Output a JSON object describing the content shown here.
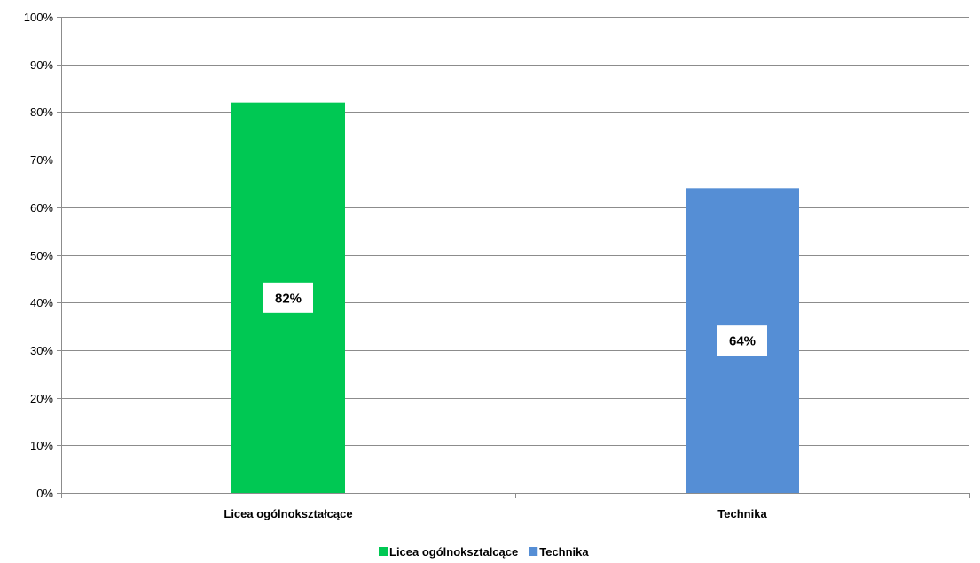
{
  "chart_data": {
    "type": "bar",
    "title": "",
    "xlabel": "",
    "ylabel": "",
    "categories": [
      "Licea ogólnokształcące",
      "Technika"
    ],
    "values": [
      82,
      64
    ],
    "value_unit": "%",
    "data_labels": [
      "82%",
      "64%"
    ],
    "bar_colors": [
      "#00c853",
      "#558ed5"
    ],
    "ylim": [
      0,
      100
    ],
    "yticks": [
      0,
      10,
      20,
      30,
      40,
      50,
      60,
      70,
      80,
      90,
      100
    ],
    "ytick_labels": [
      "0%",
      "10%",
      "20%",
      "30%",
      "40%",
      "50%",
      "60%",
      "70%",
      "80%",
      "90%",
      "100%"
    ],
    "grid": true,
    "legend": {
      "placement": "bottom",
      "entries": [
        {
          "label": "Licea ogólnokształcące",
          "color": "#00c853"
        },
        {
          "label": "Technika",
          "color": "#558ed5"
        }
      ]
    }
  }
}
